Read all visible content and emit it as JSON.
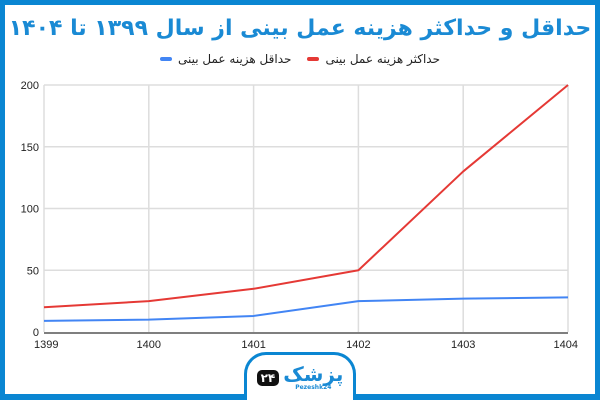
{
  "chart_data": {
    "type": "line",
    "title": "حداقل و حداکثر هزینه عمل بینی از سال ۱۳۹۹ تا ۱۴۰۴",
    "xlabel": "",
    "ylabel": "",
    "categories": [
      "1399",
      "1400",
      "1401",
      "1402",
      "1403",
      "1404"
    ],
    "series": [
      {
        "name": "حداکثر هزینه عمل بینی",
        "color": "#e53935",
        "values": [
          20,
          25,
          35,
          50,
          130,
          200
        ]
      },
      {
        "name": "حداقل هزینه عمل بینی",
        "color": "#4285f4",
        "values": [
          9,
          10,
          13,
          25,
          27,
          28
        ]
      }
    ],
    "ylim": [
      0,
      200
    ],
    "yticks": [
      0,
      50,
      100,
      150,
      200
    ],
    "grid": true,
    "legend_position": "top"
  },
  "title": "حداقل و حداکثر هزینه عمل بینی از سال ۱۳۹۹ تا ۱۴۰۴",
  "legend": [
    {
      "label": "حداکثر هزینه عمل بینی",
      "color": "#e53935"
    },
    {
      "label": "حداقل هزینه عمل بینی",
      "color": "#4285f4"
    }
  ],
  "logo": {
    "badge": "۲۴",
    "fa": "پزشک",
    "en": "Pezeshk24"
  },
  "colors": {
    "border": "#0a86d2",
    "title": "#1a8ad4",
    "grid": "#dddddd"
  }
}
